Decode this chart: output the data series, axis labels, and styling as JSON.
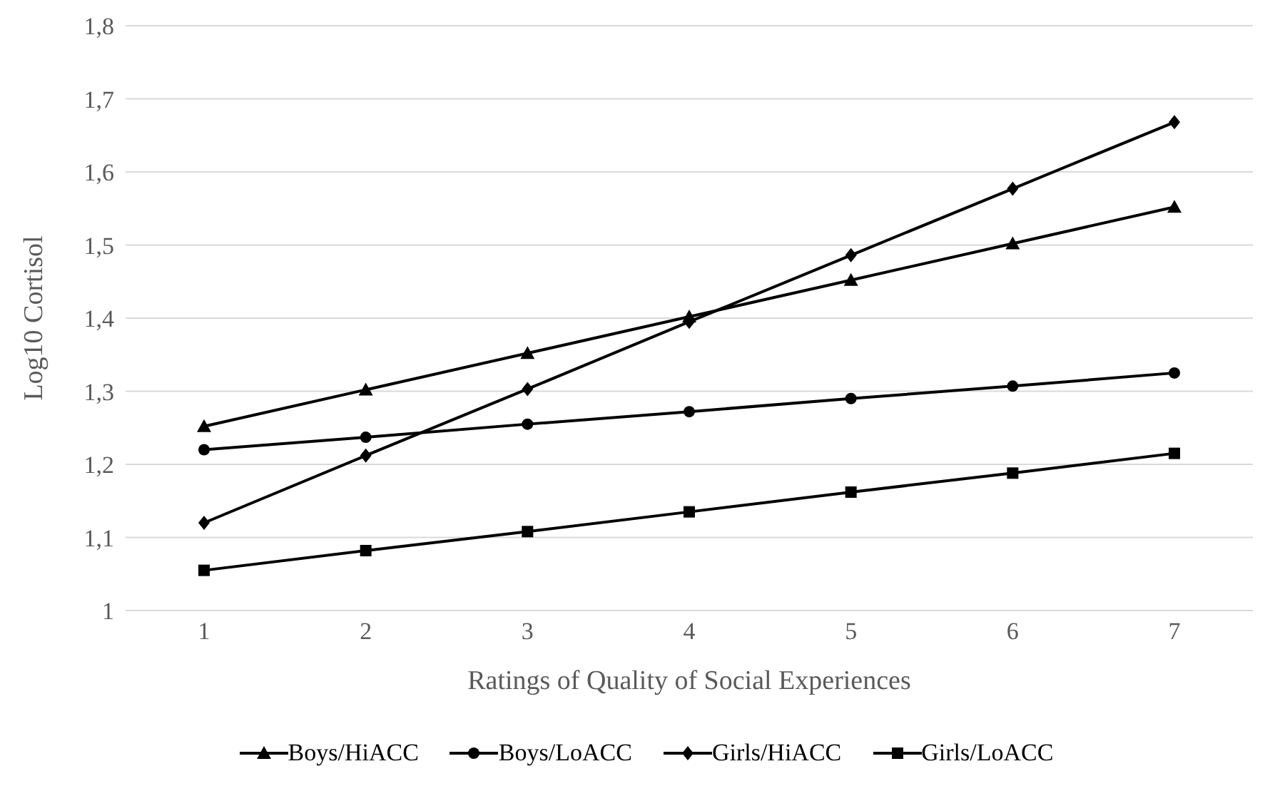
{
  "chart_data": {
    "type": "line",
    "xlabel": "Ratings of Quality of Social Experiences",
    "ylabel": "Log10 Cortisol",
    "categories": [
      "1",
      "2",
      "3",
      "4",
      "5",
      "6",
      "7"
    ],
    "ylim": [
      1,
      1.8
    ],
    "yticks": [
      1,
      {
        "value": 1.1,
        "label": "1,1"
      },
      {
        "value": 1.2,
        "label": "1,2"
      },
      {
        "value": 1.3,
        "label": "1,3"
      },
      {
        "value": 1.4,
        "label": "1,4"
      },
      {
        "value": 1.5,
        "label": "1,5"
      },
      {
        "value": 1.6,
        "label": "1,6"
      },
      {
        "value": 1.7,
        "label": "1,7"
      },
      {
        "value": 1.8,
        "label": "1,8"
      }
    ],
    "grid": "y",
    "legend": "bottom",
    "line_style": "solid",
    "series": [
      {
        "name": "Boys/HiACC",
        "color": "#000000",
        "marker": "triangle",
        "values": [
          1.252,
          1.302,
          1.352,
          1.402,
          1.452,
          1.502,
          1.552
        ]
      },
      {
        "name": "Boys/LoACC",
        "color": "#000000",
        "marker": "circle",
        "values": [
          1.22,
          1.237,
          1.255,
          1.272,
          1.29,
          1.307,
          1.325
        ]
      },
      {
        "name": "Girls/HiACC",
        "color": "#000000",
        "marker": "diamond",
        "values": [
          1.12,
          1.212,
          1.303,
          1.395,
          1.486,
          1.577,
          1.668
        ]
      },
      {
        "name": "Girls/LoACC",
        "color": "#000000",
        "marker": "square",
        "values": [
          1.055,
          1.082,
          1.108,
          1.135,
          1.162,
          1.188,
          1.215
        ]
      }
    ]
  }
}
